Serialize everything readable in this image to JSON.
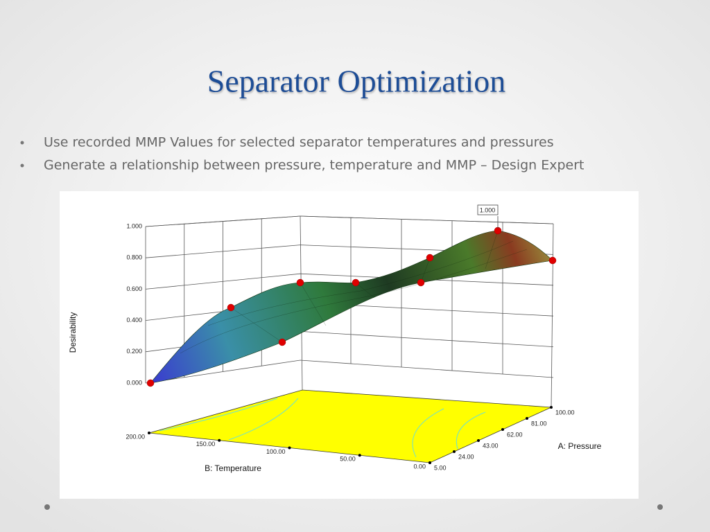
{
  "slide": {
    "title": "Separator Optimization",
    "bullets": [
      "Use recorded MMP Values for selected separator temperatures and pressures",
      "Generate a relationship between pressure, temperature and MMP – Design Expert"
    ]
  },
  "figure": {
    "annotation": "1.000",
    "z_axis": {
      "label": "Desirability",
      "ticks": [
        "0.000",
        "0.200",
        "0.400",
        "0.600",
        "0.800",
        "1.000"
      ]
    },
    "x_axis": {
      "label": "B: Temperature",
      "ticks": [
        "200.00",
        "150.00",
        "100.00",
        "50.00",
        "0.00"
      ]
    },
    "y_axis": {
      "label": "A: Pressure",
      "ticks": [
        "5.00",
        "24.00",
        "43.00",
        "62.00",
        "81.00",
        "100.00"
      ]
    }
  }
}
